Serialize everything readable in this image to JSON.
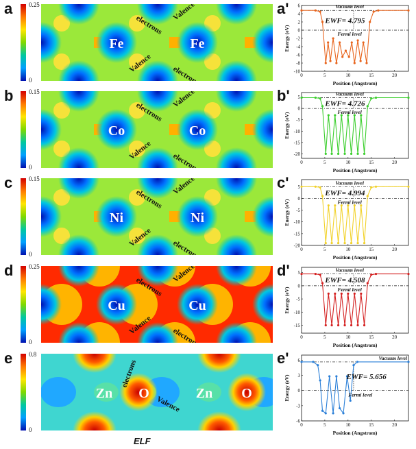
{
  "caption": "ELF",
  "panels": [
    {
      "letter": "a",
      "prime": "a'",
      "cbar_max": "0.25",
      "cbar_min": "0",
      "atoms": [
        "Fe",
        "Fe"
      ],
      "valence": "Valence",
      "electrons": "electrons",
      "theme": "green",
      "color": "#e8651e",
      "ewf_label": "EWF= 4.795",
      "vacuum_label": "Vacuum level",
      "fermi_label": "Fermi level"
    },
    {
      "letter": "b",
      "prime": "b'",
      "cbar_max": "0.15",
      "cbar_min": "0",
      "atoms": [
        "Co",
        "Co"
      ],
      "valence": "Valence",
      "electrons": "electrons",
      "theme": "green",
      "color": "#3ccf2e",
      "ewf_label": "EWF= 4.726",
      "vacuum_label": "Vacuum level",
      "fermi_label": "Fermi level"
    },
    {
      "letter": "c",
      "prime": "c'",
      "cbar_max": "0.15",
      "cbar_min": "0",
      "atoms": [
        "Ni",
        "Ni"
      ],
      "valence": "Valence",
      "electrons": "electrons",
      "theme": "green",
      "color": "#f2d22a",
      "ewf_label": "EWF= 4.994",
      "vacuum_label": "Vacuum level",
      "fermi_label": "Fermi level"
    },
    {
      "letter": "d",
      "prime": "d'",
      "cbar_max": "0.25",
      "cbar_min": "0",
      "atoms": [
        "Cu",
        "Cu"
      ],
      "valence": "Valence",
      "electrons": "electrons",
      "theme": "red",
      "color": "#d42020",
      "ewf_label": "EWF= 4.508",
      "vacuum_label": "Vacuum level",
      "fermi_label": "Fermi level"
    },
    {
      "letter": "e",
      "prime": "e'",
      "cbar_max": "0.8",
      "cbar_min": "0",
      "atoms": [
        "Zn",
        "O",
        "Zn",
        "O"
      ],
      "valence": "Valence",
      "electrons": "electrons",
      "theme": "cyan",
      "color": "#2a7fd8",
      "ewf_label": "EWF= 5.656",
      "vacuum_label": "Vacuum level",
      "fermi_label": "Fermi level"
    }
  ],
  "chart_data": [
    {
      "type": "line",
      "panel": "a'",
      "xlabel": "Position (Angstrom)",
      "ylabel": "Energy (eV)",
      "xlim": [
        0,
        23
      ],
      "ylim": [
        -10,
        6
      ],
      "xticks": [
        0,
        5,
        10,
        15,
        20
      ],
      "yticks": [
        6,
        4,
        2,
        0,
        -2,
        -4,
        -6,
        -8,
        -10
      ],
      "vacuum_level": 4.795,
      "fermi_level": 0,
      "ewf": 4.795,
      "x": [
        0,
        3,
        4,
        4.5,
        5.2,
        5.7,
        6.2,
        6.8,
        7.5,
        8.2,
        8.8,
        9.5,
        10.2,
        10.8,
        11.4,
        12.1,
        12.7,
        13.3,
        14,
        14.7,
        15.5,
        16.5,
        23
      ],
      "y": [
        4.795,
        4.795,
        4.5,
        2,
        -8,
        -3,
        -7.5,
        -2,
        -8,
        -3,
        -6.5,
        -5,
        -6.5,
        -3,
        -8,
        -2.5,
        -7.5,
        -3,
        -8,
        2,
        4.5,
        4.795,
        4.795
      ]
    },
    {
      "type": "line",
      "panel": "b'",
      "xlabel": "Position (Angstrom)",
      "ylabel": "Energy (eV)",
      "xlim": [
        0,
        23
      ],
      "ylim": [
        -22,
        7
      ],
      "xticks": [
        0,
        5,
        10,
        15,
        20
      ],
      "yticks": [
        5,
        0,
        -5,
        -10,
        -15,
        -20
      ],
      "vacuum_level": 4.726,
      "fermi_level": 0,
      "ewf": 4.726,
      "x": [
        0,
        3,
        4,
        4.5,
        5.2,
        5.8,
        6.5,
        7.2,
        7.9,
        8.6,
        9.3,
        10,
        10.7,
        11.4,
        12.1,
        12.8,
        13.5,
        14.2,
        15,
        16,
        23
      ],
      "y": [
        4.726,
        4.726,
        4.4,
        1,
        -20,
        -3,
        -20,
        -3,
        -20,
        -3,
        -20,
        -3,
        -20,
        -3,
        -20,
        -3,
        -20,
        1,
        4.4,
        4.726,
        4.726
      ]
    },
    {
      "type": "line",
      "panel": "c'",
      "xlabel": "Position (Angstrom)",
      "ylabel": "Energy (eV)",
      "xlim": [
        0,
        23
      ],
      "ylim": [
        -20,
        8
      ],
      "xticks": [
        0,
        5,
        10,
        15,
        20
      ],
      "yticks": [
        5,
        0,
        -5,
        -10,
        -15,
        -20
      ],
      "vacuum_level": 4.994,
      "fermi_level": 0,
      "ewf": 4.994,
      "x": [
        0,
        3,
        4,
        4.5,
        5.2,
        5.8,
        6.5,
        7.2,
        7.9,
        8.6,
        9.3,
        10,
        10.7,
        11.4,
        12.1,
        12.8,
        13.5,
        14.2,
        15,
        16,
        23
      ],
      "y": [
        4.994,
        4.994,
        4.7,
        1,
        -19,
        -3,
        -19,
        -3,
        -19,
        -3,
        -19,
        -3,
        -19,
        -3,
        -19,
        -3,
        -19,
        1,
        4.7,
        4.994,
        4.994
      ]
    },
    {
      "type": "line",
      "panel": "d'",
      "xlabel": "Position (Angstrom)",
      "ylabel": "Energy (eV)",
      "xlim": [
        0,
        23
      ],
      "ylim": [
        -18,
        7
      ],
      "xticks": [
        0,
        5,
        10,
        15,
        20
      ],
      "yticks": [
        5,
        0,
        -5,
        -10,
        -15
      ],
      "vacuum_level": 4.508,
      "fermi_level": 0,
      "ewf": 4.508,
      "x": [
        0,
        3,
        4,
        4.5,
        5.2,
        5.8,
        6.5,
        7.2,
        7.9,
        8.6,
        9.3,
        10,
        10.7,
        11.4,
        12.1,
        12.8,
        13.5,
        14.2,
        15,
        16,
        23
      ],
      "y": [
        4.508,
        4.508,
        4.2,
        1,
        -15,
        -3,
        -15,
        -3,
        -15,
        -3,
        -15,
        -3,
        -15,
        -3,
        -15,
        -3,
        -15,
        1,
        4.2,
        4.508,
        4.508
      ]
    },
    {
      "type": "line",
      "panel": "e'",
      "xlabel": "Position (Angstrom)",
      "ylabel": "Energy (eV)",
      "xlim": [
        0,
        23
      ],
      "ylim": [
        -6,
        7
      ],
      "xticks": [
        0,
        5,
        10,
        15,
        20
      ],
      "yticks": [
        6,
        3,
        0,
        -3,
        -6
      ],
      "vacuum_level": 5.656,
      "fermi_level": 0,
      "ewf": 5.656,
      "x": [
        0,
        2.5,
        3.5,
        4,
        4.5,
        5.2,
        6,
        6.8,
        7.5,
        8.2,
        9,
        9.8,
        10.5,
        11.2,
        12,
        23
      ],
      "y": [
        5.656,
        5.656,
        5,
        2,
        -4,
        -4.5,
        2.8,
        -4.5,
        2.8,
        -3.5,
        -4.5,
        2.8,
        -2,
        5,
        5.656,
        5.656
      ]
    }
  ]
}
